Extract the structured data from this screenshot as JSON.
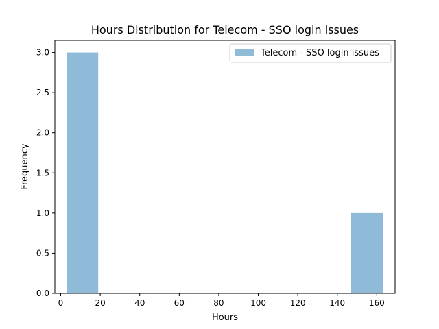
{
  "chart_data": {
    "type": "bar",
    "title": "Hours Distribution for Telecom - SSO login issues",
    "xlabel": "Hours",
    "ylabel": "Frequency",
    "xlim": [
      -2.95,
      169.25
    ],
    "ylim": [
      0,
      3.15
    ],
    "x_ticks": [
      0,
      20,
      40,
      60,
      80,
      100,
      120,
      140,
      160
    ],
    "y_ticks": [
      0.0,
      0.5,
      1.0,
      1.5,
      2.0,
      2.5,
      3.0
    ],
    "x_tick_labels": [
      "0",
      "20",
      "40",
      "60",
      "80",
      "100",
      "120",
      "140",
      "160"
    ],
    "y_tick_labels": [
      "0.0",
      "0.5",
      "1.0",
      "1.5",
      "2.0",
      "2.5",
      "3.0"
    ],
    "grid": false,
    "legend": {
      "placement": "upper-right",
      "entries": [
        "Telecom - SSO login issues"
      ]
    },
    "series": [
      {
        "name": "Telecom - SSO login issues",
        "color": "#8fbbd9",
        "bins": [
          {
            "x0": 3.0,
            "x1": 19.0,
            "count": 3
          },
          {
            "x0": 147.0,
            "x1": 163.0,
            "count": 1
          }
        ]
      }
    ]
  }
}
